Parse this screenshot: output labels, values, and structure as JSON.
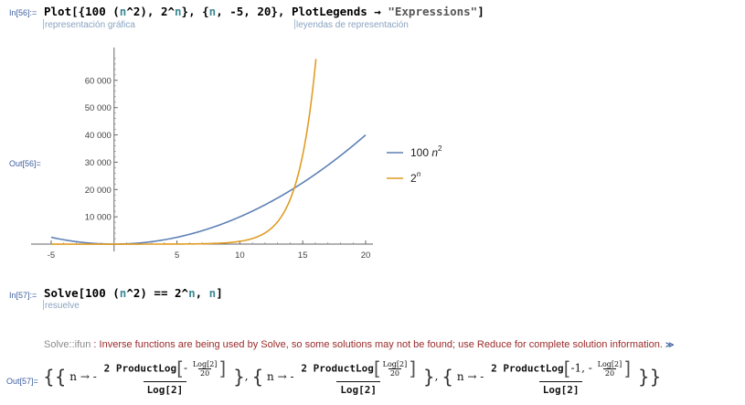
{
  "cells": {
    "in56": {
      "label": "In[56]:=",
      "code": {
        "t1": "Plot[{100 (",
        "t2": "n",
        "t3": "^2), 2^",
        "t4": "n",
        "t5": "}, {",
        "t6": "n",
        "t7": ", -5, 20}, PlotLegends → ",
        "t8": "\"Expressions\"",
        "t9": "]"
      },
      "hint_left": "representación gráfica",
      "hint_right": "leyendas de representación"
    },
    "out56": {
      "label": "Out[56]="
    },
    "in57": {
      "label": "In[57]:=",
      "code": {
        "t1": "Solve[100 (",
        "t2": "n",
        "t3": "^2) == 2^",
        "t4": "n",
        "t5": ", ",
        "t6": "n",
        "t7": "]"
      },
      "hint": "resuelve"
    },
    "message": {
      "tag": "Solve::ifun",
      "sep": " : ",
      "text": "Inverse functions are being used by Solve, so some solutions may not be found; use Reduce for complete solution information.",
      "more": "≫"
    },
    "out57": {
      "label": "Out[57]=",
      "sol1": {
        "n": "n",
        "arrow": "→",
        "minus": "-",
        "num": "2 ProductLog",
        "inner_neg": "-",
        "inner_num": "Log[2]",
        "inner_den": "20",
        "den": "Log[2]"
      },
      "sol2": {
        "n": "n",
        "arrow": "→",
        "minus": "-",
        "num": "2 ProductLog",
        "inner_neg": "",
        "inner_num": "Log[2]",
        "inner_den": "20",
        "den": "Log[2]"
      },
      "sol3": {
        "n": "n",
        "arrow": "→",
        "minus": "-",
        "num": "2 ProductLog",
        "inner_pre": "-1, -",
        "inner_num": "Log[2]",
        "inner_den": "20",
        "den": "Log[2]"
      }
    }
  },
  "chart_data": {
    "type": "line",
    "x_range": [
      -5,
      20
    ],
    "ylim": [
      -2000,
      70000
    ],
    "x_ticks": [
      -5,
      5,
      10,
      15,
      20
    ],
    "x_tick_labels": [
      "-5",
      "5",
      "10",
      "15",
      "20"
    ],
    "y_ticks": [
      10000,
      20000,
      30000,
      40000,
      50000,
      60000
    ],
    "y_tick_labels": [
      "10 000",
      "20 000",
      "30 000",
      "40 000",
      "50 000",
      "60 000"
    ],
    "legend_position": "right",
    "series": [
      {
        "name": "100 n²",
        "legend_base": "100 ",
        "legend_var": "n",
        "legend_sup": "2",
        "expr": "100*n^2",
        "color": "#5e81b5"
      },
      {
        "name": "2ⁿ",
        "legend_base": "2",
        "legend_var": "",
        "legend_sup": "n",
        "expr": "2^n",
        "color": "#e19c24"
      }
    ]
  }
}
